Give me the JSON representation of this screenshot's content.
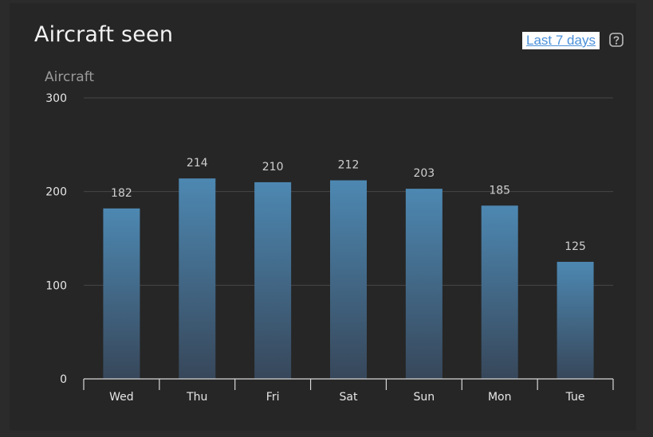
{
  "card": {
    "title": "Aircraft seen",
    "range_label": "Last 7 days",
    "help_icon": "question-square-icon"
  },
  "colors": {
    "background": "#262626",
    "bar_top": "#4d88b2",
    "bar_bottom": "#37475a",
    "grid": "#474747",
    "axis": "#d8d8d8",
    "link": "#4a90d9"
  },
  "chart_data": {
    "type": "bar",
    "title": "",
    "xlabel": "",
    "ylabel": "Aircraft",
    "categories": [
      "Wed",
      "Thu",
      "Fri",
      "Sat",
      "Sun",
      "Mon",
      "Tue"
    ],
    "values": [
      182,
      214,
      210,
      212,
      203,
      185,
      125
    ],
    "yticks": [
      0,
      100,
      200,
      300
    ],
    "ylim": [
      0,
      300
    ],
    "grid": true,
    "legend": "none",
    "data_labels": true
  }
}
